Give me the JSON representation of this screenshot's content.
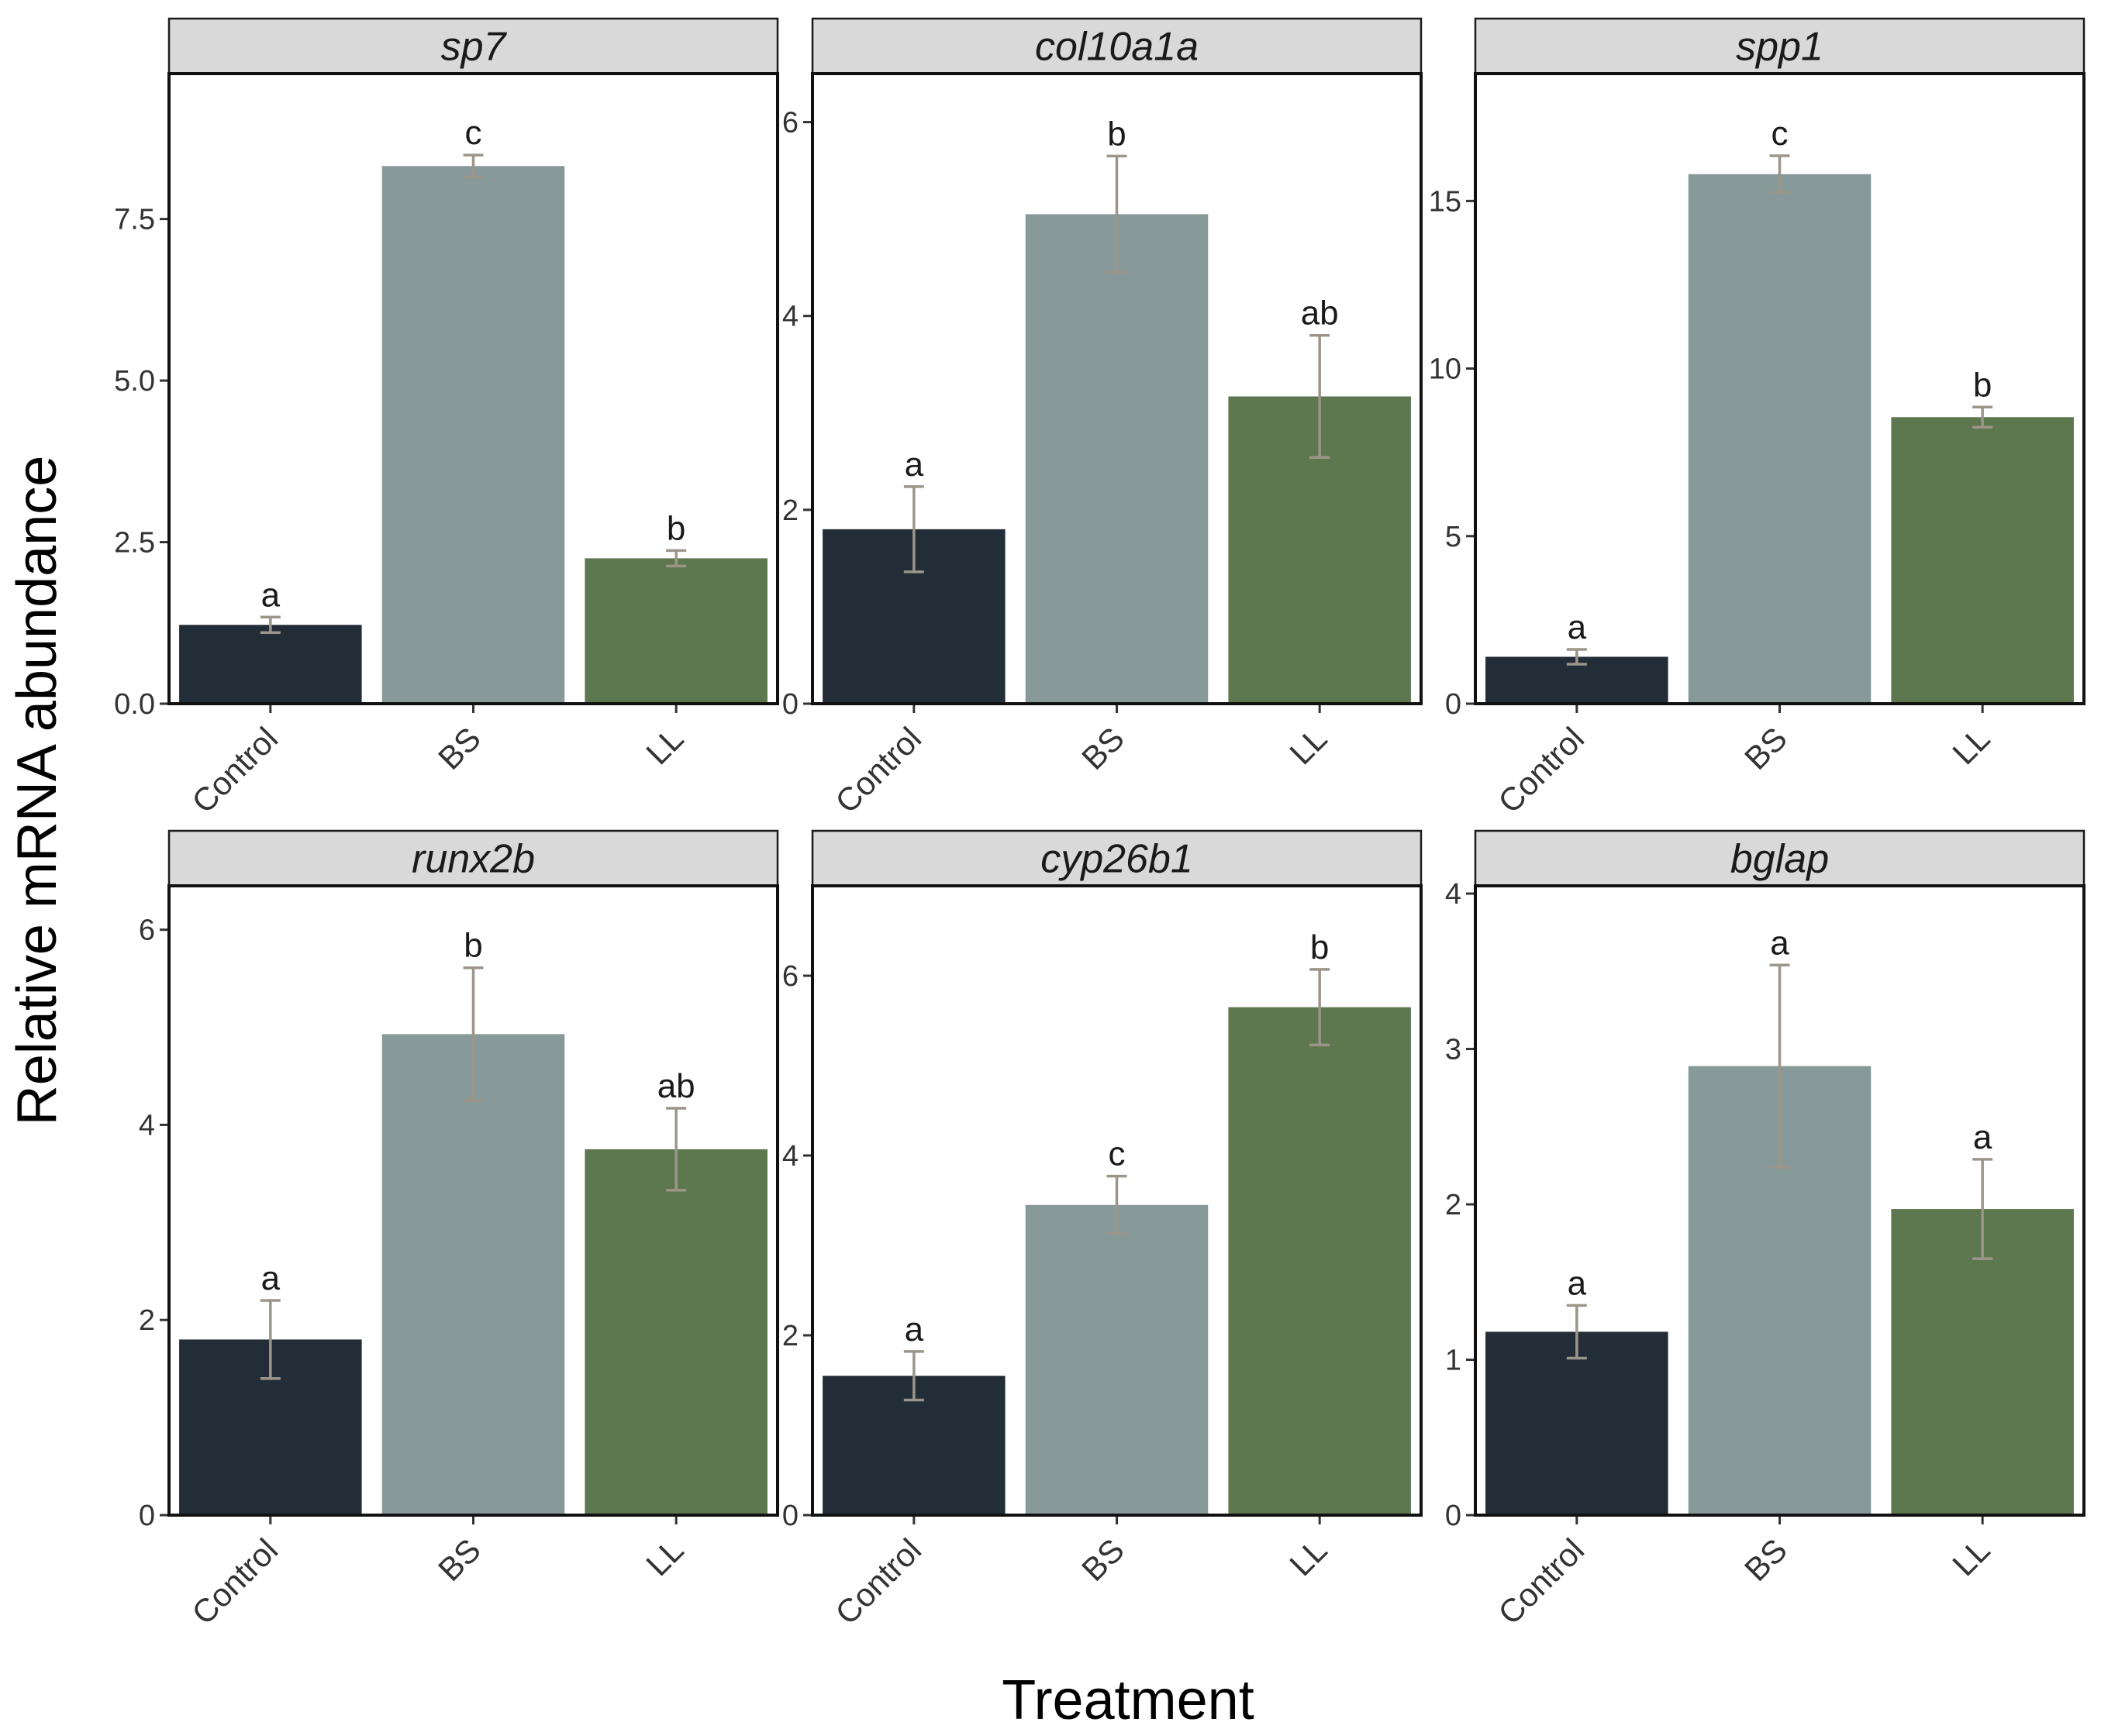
{
  "chart_data": {
    "type": "bar",
    "xlabel": "Treatment",
    "ylabel": "Relative mRNA abundance",
    "categories": [
      "Control",
      "BS",
      "LL"
    ],
    "colors": [
      "#232d38",
      "#879998",
      "#5d774f"
    ],
    "error_color": "#9c958a",
    "panels": [
      {
        "title": "sp7",
        "ylim": [
          0,
          9.75
        ],
        "yticks": [
          0.0,
          2.5,
          5.0,
          7.5
        ],
        "ytick_labels": [
          "0.0",
          "2.5",
          "5.0",
          "7.5"
        ],
        "values": [
          1.22,
          8.32,
          2.25
        ],
        "errors": [
          0.12,
          0.17,
          0.12
        ],
        "letters": [
          "a",
          "c",
          "b"
        ]
      },
      {
        "title": "col10a1a",
        "ylim": [
          0,
          6.5
        ],
        "yticks": [
          0,
          2,
          4,
          6
        ],
        "ytick_labels": [
          "0",
          "2",
          "4",
          "6"
        ],
        "values": [
          1.8,
          5.05,
          3.17
        ],
        "errors": [
          0.44,
          0.6,
          0.63
        ],
        "letters": [
          "a",
          "b",
          "ab"
        ]
      },
      {
        "title": "spp1",
        "ylim": [
          0,
          18.8
        ],
        "yticks": [
          0,
          5,
          10,
          15
        ],
        "ytick_labels": [
          "0",
          "5",
          "10",
          "15"
        ],
        "values": [
          1.4,
          15.8,
          8.55
        ],
        "errors": [
          0.22,
          0.55,
          0.3
        ],
        "letters": [
          "a",
          "c",
          "b"
        ]
      },
      {
        "title": "runx2b",
        "ylim": [
          0,
          6.45
        ],
        "yticks": [
          0,
          2,
          4,
          6
        ],
        "ytick_labels": [
          "0",
          "2",
          "4",
          "6"
        ],
        "values": [
          1.8,
          4.93,
          3.75
        ],
        "errors": [
          0.4,
          0.68,
          0.42
        ],
        "letters": [
          "a",
          "b",
          "ab"
        ]
      },
      {
        "title": "cyp26b1",
        "ylim": [
          0,
          7.0
        ],
        "yticks": [
          0,
          2,
          4,
          6
        ],
        "ytick_labels": [
          "0",
          "2",
          "4",
          "6"
        ],
        "values": [
          1.55,
          3.45,
          5.65
        ],
        "errors": [
          0.27,
          0.32,
          0.42
        ],
        "letters": [
          "a",
          "c",
          "b"
        ]
      },
      {
        "title": "bglap",
        "ylim": [
          0,
          4.05
        ],
        "yticks": [
          0,
          1,
          2,
          3,
          4
        ],
        "ytick_labels": [
          "0",
          "1",
          "2",
          "3",
          "4"
        ],
        "values": [
          1.18,
          2.89,
          1.97
        ],
        "errors": [
          0.17,
          0.65,
          0.32
        ],
        "letters": [
          "a",
          "a",
          "a"
        ]
      }
    ]
  }
}
